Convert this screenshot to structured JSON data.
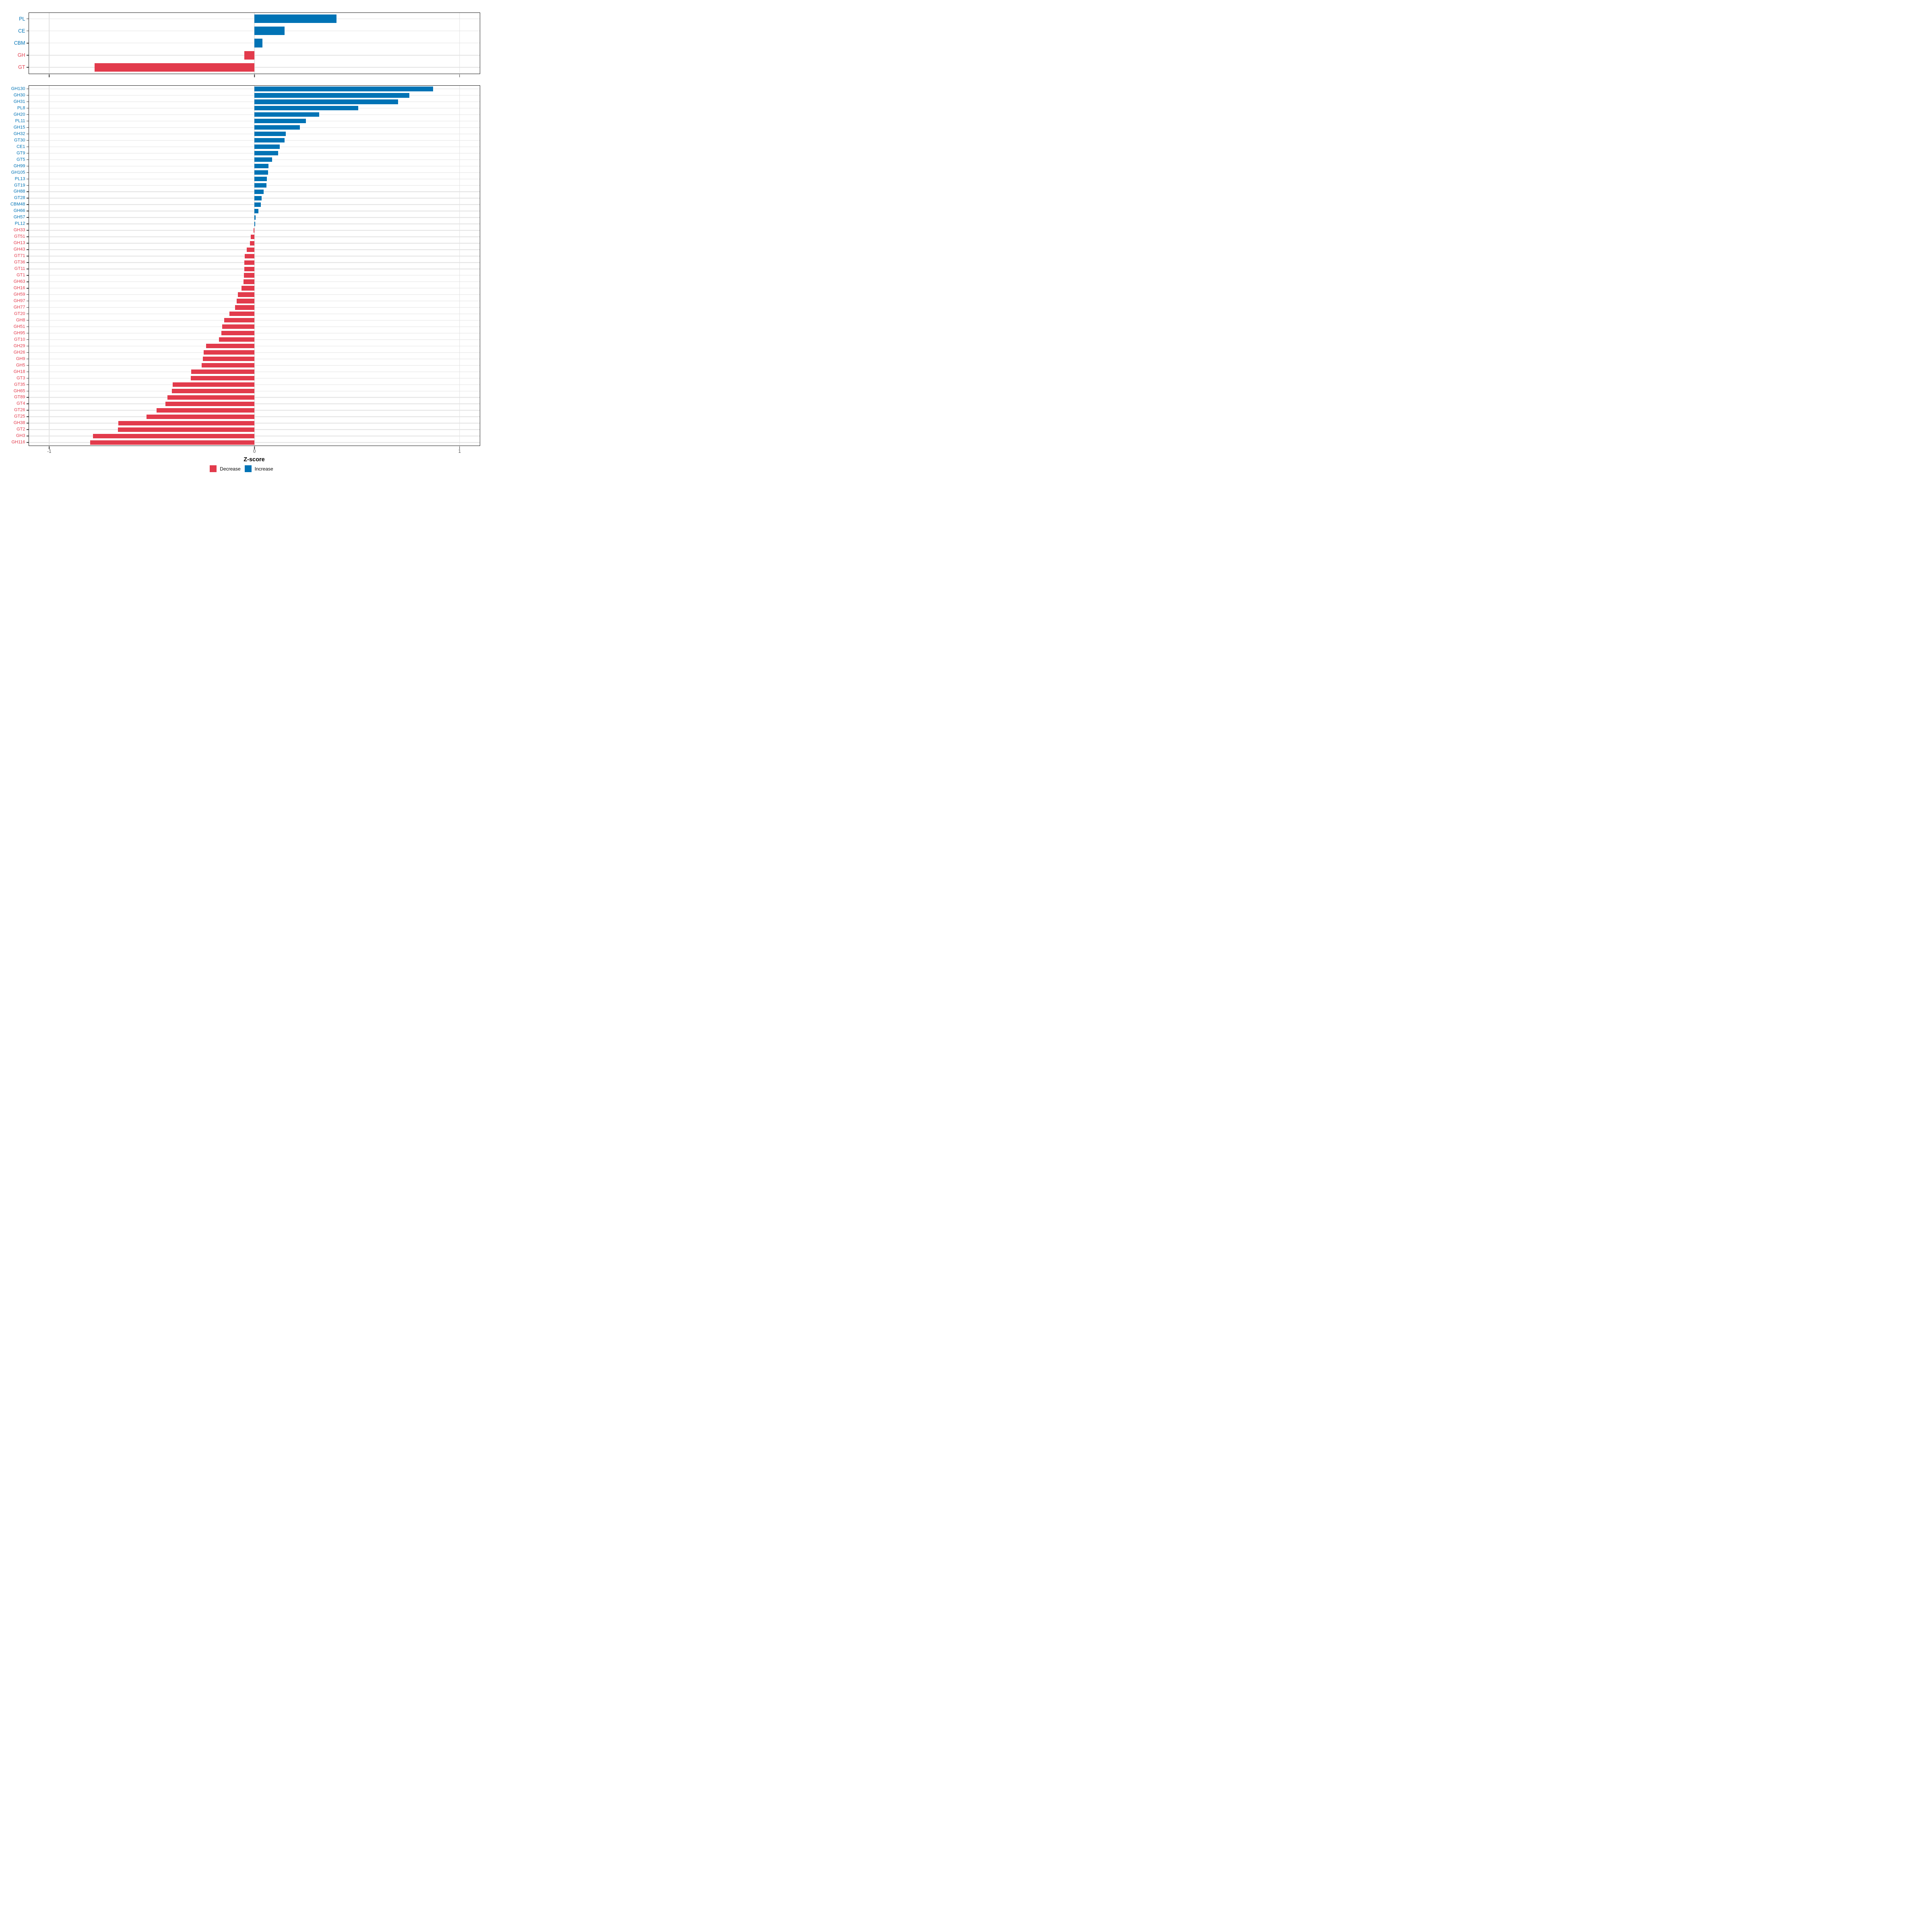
{
  "axis": {
    "title": "Z-score",
    "xlim": [
      -1.1,
      1.0975
    ],
    "ticks": [
      -1,
      0,
      1
    ],
    "tick_labels": [
      "-1",
      "0",
      "1"
    ]
  },
  "colors": {
    "decrease": "#e23b4c",
    "increase": "#0073b5",
    "grid": "#e2e2e2",
    "panel_border": "#1a1a1a",
    "tick_text": "#4d4d4d"
  },
  "legend": {
    "items": [
      {
        "label": "Decrease",
        "color": "#e23b4c"
      },
      {
        "label": "Increase",
        "color": "#0073b5"
      }
    ]
  },
  "chart_data": [
    {
      "type": "bar",
      "orientation": "horizontal",
      "panel": "enzyme-classes",
      "xlabel": "Z-score",
      "xlim": [
        -1.1,
        1.1
      ],
      "xticks": [
        -1,
        0,
        1
      ],
      "grid": true,
      "categories": [
        "PL",
        "CE",
        "CBM",
        "GH",
        "GT"
      ],
      "values": [
        0.4,
        0.146,
        0.039,
        -0.05,
        -0.78
      ]
    },
    {
      "type": "bar",
      "orientation": "horizontal",
      "panel": "enzyme-families",
      "xlabel": "Z-score",
      "xlim": [
        -1.1,
        1.1
      ],
      "xticks": [
        -1,
        0,
        1
      ],
      "grid": true,
      "categories": [
        "GH130",
        "GH30",
        "GH31",
        "PL8",
        "GH20",
        "PL11",
        "GH15",
        "GH32",
        "GT30",
        "CE1",
        "GT9",
        "GT5",
        "GH99",
        "GH105",
        "PL13",
        "GT19",
        "GH88",
        "GT28",
        "CBM48",
        "GH66",
        "GH57",
        "PL12",
        "GH33",
        "GT51",
        "GH13",
        "GH43",
        "GT71",
        "GT36",
        "GT11",
        "GT1",
        "GH63",
        "GH16",
        "GH59",
        "GH97",
        "GH77",
        "GT20",
        "GH8",
        "GH51",
        "GH95",
        "GT10",
        "GH29",
        "GH26",
        "GH9",
        "GH5",
        "GH18",
        "GT3",
        "GT35",
        "GH65",
        "GT89",
        "GT4",
        "GT26",
        "GT25",
        "GH38",
        "GT2",
        "GH3",
        "GH116"
      ],
      "values": [
        0.87,
        0.755,
        0.7,
        0.505,
        0.315,
        0.25,
        0.222,
        0.152,
        0.146,
        0.124,
        0.115,
        0.087,
        0.068,
        0.066,
        0.06,
        0.058,
        0.045,
        0.035,
        0.032,
        0.019,
        0.006,
        0.004,
        -0.004,
        -0.017,
        -0.021,
        -0.038,
        -0.048,
        -0.049,
        -0.05,
        -0.051,
        -0.053,
        -0.063,
        -0.08,
        -0.087,
        -0.095,
        -0.122,
        -0.147,
        -0.158,
        -0.161,
        -0.172,
        -0.235,
        -0.248,
        -0.252,
        -0.257,
        -0.308,
        -0.311,
        -0.398,
        -0.402,
        -0.424,
        -0.433,
        -0.477,
        -0.527,
        -0.664,
        -0.666,
        -0.788,
        -0.8
      ]
    }
  ]
}
